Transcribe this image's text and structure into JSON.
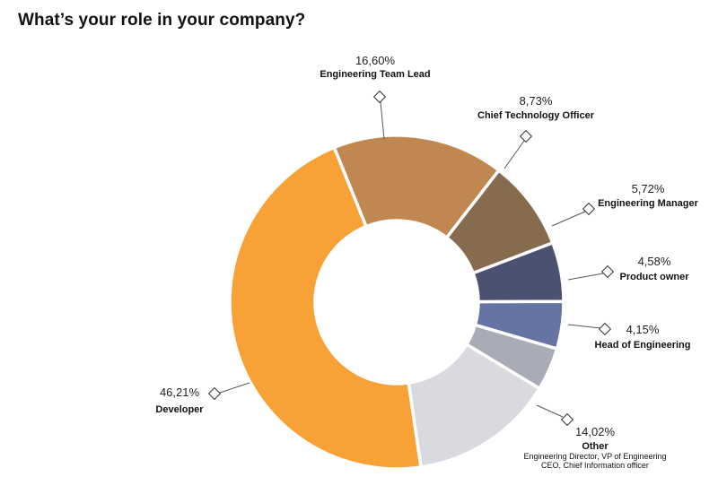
{
  "title": "What’s your role in your company?",
  "chart_data": {
    "type": "pie",
    "variant": "donut",
    "title": "What’s your role in your company?",
    "slices": [
      {
        "label": "Engineering Team Lead",
        "value": 16.6,
        "display": "16,60%",
        "color": "#c08850"
      },
      {
        "label": "Chief Technology Officer",
        "value": 8.73,
        "display": "8,73%",
        "color": "#876b4f"
      },
      {
        "label": "Engineering Manager",
        "value": 5.72,
        "display": "5,72%",
        "color": "#4b5171"
      },
      {
        "label": "Product owner",
        "value": 4.58,
        "display": "4,58%",
        "color": "#6674a4"
      },
      {
        "label": "Head of Engineering",
        "value": 4.15,
        "display": "4,15%",
        "color": "#a9acb6"
      },
      {
        "label": "Other",
        "value": 14.02,
        "display": "14,02%",
        "color": "#d9dadf",
        "sublabels": [
          "Engineering Director, VP of Engineering",
          "CEO, Chief Information officer"
        ]
      },
      {
        "label": "Developer",
        "value": 46.21,
        "display": "46,21%",
        "color": "#f8a137"
      }
    ]
  }
}
